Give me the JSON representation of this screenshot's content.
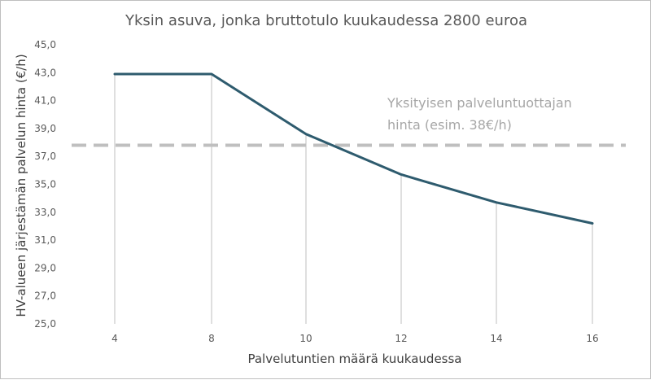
{
  "chart_data": {
    "type": "line",
    "title": "Yksin asuva, jonka bruttotulo kuukaudessa 2800 euroa",
    "xlabel": "Palvelutuntien määrä kuukaudessa",
    "ylabel": "HV-alueen järjestämän palvelun hinta (€/h)",
    "x": [
      4,
      8,
      10,
      12,
      14,
      16
    ],
    "x_tick_labels": [
      "4",
      "8",
      "10",
      "12",
      "14",
      "16"
    ],
    "series": [
      {
        "values": [
          42.9,
          42.9,
          38.6,
          35.7,
          33.7,
          32.2
        ],
        "color": "#2e5b6e"
      }
    ],
    "ylim": [
      25,
      45
    ],
    "y_tick_labels": [
      "25,0",
      "27,0",
      "29,0",
      "31,0",
      "33,0",
      "35,0",
      "37,0",
      "39,0",
      "41,0",
      "43,0",
      "45,0"
    ],
    "grid": "vertical drop lines at categories",
    "reference_line": {
      "value": 37.8,
      "style": "dashed",
      "color": "#bfbfbf"
    },
    "annotation": {
      "lines": [
        "Yksityisen palveluntuottajan",
        "hinta (esim. 38€/h)"
      ],
      "color": "#a6a6a6"
    }
  }
}
